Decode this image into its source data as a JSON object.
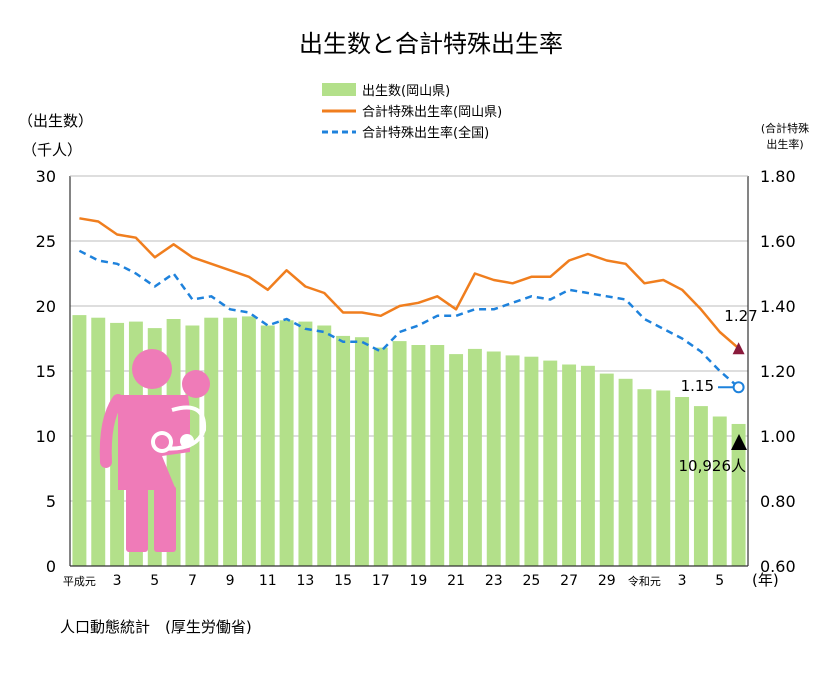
{
  "chart_data": {
    "type": "bar",
    "title": "出生数と合計特殊出生率",
    "y_left_label_line1": "（出生数）",
    "y_left_label_line2": "（千人）",
    "y_right_label_line1": "(合計特殊",
    "y_right_label_line2": "出生率)",
    "x_unit_label": "(年)",
    "y_left_lim": [
      0,
      30
    ],
    "y_left_ticks": [
      "0",
      "5",
      "10",
      "15",
      "20",
      "25",
      "30"
    ],
    "y_right_lim": [
      0.6,
      1.8
    ],
    "y_right_ticks": [
      "0.60",
      "0.80",
      "1.00",
      "1.20",
      "1.40",
      "1.60",
      "1.80"
    ],
    "grid": true,
    "legend_position": "top-center",
    "x_tick_labels": [
      {
        "index": 0,
        "label": "平成元"
      },
      {
        "index": 2,
        "label": "3"
      },
      {
        "index": 4,
        "label": "5"
      },
      {
        "index": 6,
        "label": "7"
      },
      {
        "index": 8,
        "label": "9"
      },
      {
        "index": 10,
        "label": "11"
      },
      {
        "index": 12,
        "label": "13"
      },
      {
        "index": 14,
        "label": "15"
      },
      {
        "index": 16,
        "label": "17"
      },
      {
        "index": 18,
        "label": "19"
      },
      {
        "index": 20,
        "label": "21"
      },
      {
        "index": 22,
        "label": "23"
      },
      {
        "index": 24,
        "label": "25"
      },
      {
        "index": 26,
        "label": "27"
      },
      {
        "index": 28,
        "label": "29"
      },
      {
        "index": 30,
        "label": "令和元"
      },
      {
        "index": 32,
        "label": "3"
      },
      {
        "index": 34,
        "label": "5"
      }
    ],
    "series": [
      {
        "name": "出生数(岡山県)",
        "kind": "bar",
        "axis": "left",
        "color": "#b3e08a",
        "values": [
          19.3,
          19.1,
          18.7,
          18.8,
          18.3,
          19.0,
          18.5,
          19.1,
          19.1,
          19.2,
          18.5,
          18.9,
          18.8,
          18.5,
          17.7,
          17.6,
          16.8,
          17.3,
          17.0,
          17.0,
          16.3,
          16.7,
          16.5,
          16.2,
          16.1,
          15.8,
          15.5,
          15.4,
          14.8,
          14.4,
          13.6,
          13.5,
          13.0,
          12.3,
          11.5,
          10.926
        ]
      },
      {
        "name": "合計特殊出生率(岡山県)",
        "kind": "line",
        "axis": "right",
        "color": "#f07e1e",
        "values": [
          1.67,
          1.66,
          1.62,
          1.61,
          1.55,
          1.59,
          1.55,
          1.53,
          1.51,
          1.49,
          1.45,
          1.51,
          1.46,
          1.44,
          1.38,
          1.38,
          1.37,
          1.4,
          1.41,
          1.43,
          1.39,
          1.5,
          1.48,
          1.47,
          1.49,
          1.49,
          1.54,
          1.56,
          1.54,
          1.53,
          1.47,
          1.48,
          1.45,
          1.39,
          1.32,
          1.27
        ]
      },
      {
        "name": "合計特殊出生率(全国)",
        "kind": "line",
        "axis": "right",
        "dashed": true,
        "color": "#1e82dc",
        "values": [
          1.57,
          1.54,
          1.53,
          1.5,
          1.46,
          1.5,
          1.42,
          1.43,
          1.39,
          1.38,
          1.34,
          1.36,
          1.33,
          1.32,
          1.29,
          1.29,
          1.26,
          1.32,
          1.34,
          1.37,
          1.37,
          1.39,
          1.39,
          1.41,
          1.43,
          1.42,
          1.45,
          1.44,
          1.43,
          1.42,
          1.36,
          1.33,
          1.3,
          1.26,
          1.2,
          1.15
        ]
      }
    ],
    "annotations": {
      "okayama_rate_latest": "1.27",
      "national_rate_latest": "1.15",
      "births_latest": "10,926人"
    },
    "marker_colors": {
      "okayama_rate": "#8a1a3c",
      "births": "#000000",
      "national_rate": "#1e82dc"
    },
    "icon": "mother-and-baby-icon",
    "icon_color": "#ef7bb8"
  },
  "source_note": "人口動態統計　(厚生労働省)"
}
